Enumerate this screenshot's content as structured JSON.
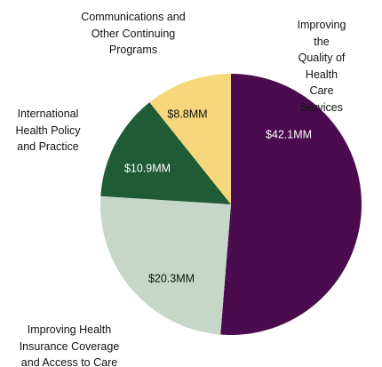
{
  "chart_data": {
    "type": "pie",
    "categories": [
      "Improving the\nQuality of Health\nCare Services",
      "Improving Health\nInsurance Coverage\nand Access to Care",
      "International\nHealth Policy\nand Practice",
      "Communications and\nOther Continuing\nPrograms"
    ],
    "values": [
      42.1,
      20.3,
      10.9,
      8.8
    ],
    "value_labels": [
      "$42.1MM",
      "$20.3MM",
      "$10.9MM",
      "$8.8MM"
    ],
    "colors": [
      "#4b0b4f",
      "#c6d6c9",
      "#1f5b35",
      "#f6d77c"
    ]
  }
}
